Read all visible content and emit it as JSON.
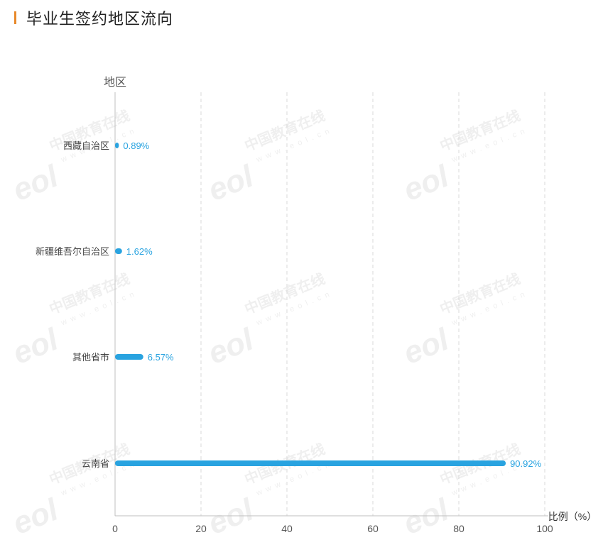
{
  "page": {
    "title": "毕业生签约地区流向",
    "accent_color": "#e8892b"
  },
  "watermark": {
    "logo": "eol",
    "text_cn": "中国教育在线",
    "text_url": "www.eol.cn"
  },
  "chart_data": {
    "type": "bar",
    "orientation": "horizontal",
    "categories": [
      "西藏自治区",
      "新疆维吾尔自治区",
      "其他省市",
      "云南省"
    ],
    "values": [
      0.89,
      1.62,
      6.57,
      90.92
    ],
    "value_labels": [
      "0.89%",
      "1.62%",
      "6.57%",
      "90.92%"
    ],
    "ylabel": "地区",
    "xlabel": "比例（%）",
    "xlim": [
      0,
      100
    ],
    "xticks": [
      "0",
      "20",
      "40",
      "60",
      "80",
      "100"
    ],
    "grid": true,
    "bar_color": "#29a3e0",
    "label_color": "#29a3e0"
  }
}
